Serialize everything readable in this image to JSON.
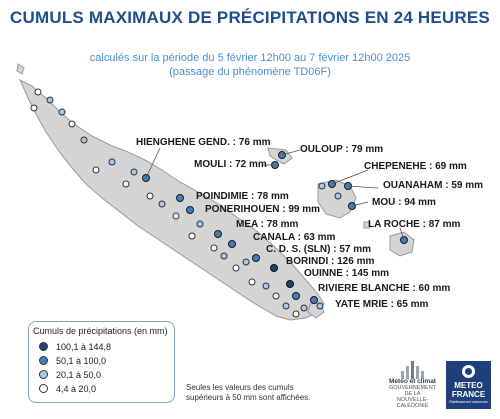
{
  "header": {
    "title": "CUMULS MAXIMAUX DE PRÉCIPITATIONS EN 24 HEURES",
    "subtitle_line1": "calculés sur la période du 5 février 12h00 au 7 février 12h00 2025",
    "subtitle_line2": "(passage du phénomène TD06F)"
  },
  "colors": {
    "class1": "#1f3f7a",
    "class2": "#3f7ec0",
    "class3": "#a8c8ea",
    "class4": "#ffffff",
    "land": "#d4d4d4",
    "coast": "#9a9a9a",
    "title": "#1f4e8c",
    "subtitle": "#4a8fd0"
  },
  "map_labels": [
    {
      "text": "HIENGHENE GEND. : 76 mm"
    },
    {
      "text": "OULOUP : 79 mm"
    },
    {
      "text": "MOULI : 72 mm"
    },
    {
      "text": "CHEPENEHE : 69 mm"
    },
    {
      "text": "OUANAHAM : 59 mm"
    },
    {
      "text": "POINDIMIE : 78 mm"
    },
    {
      "text": "MOU : 94 mm"
    },
    {
      "text": "PONERIHOUEN : 99 mm"
    },
    {
      "text": "LA ROCHE : 87 mm"
    },
    {
      "text": "MEA : 78 mm"
    },
    {
      "text": "CANALA : 63 mm"
    },
    {
      "text": "C. D. S. (SLN) : 57 mm"
    },
    {
      "text": "BORINDI : 126 mm"
    },
    {
      "text": "OUINNE : 145 mm"
    },
    {
      "text": "RIVIERE BLANCHE : 60 mm"
    },
    {
      "text": "YATE MRIE : 65 mm"
    }
  ],
  "legend": {
    "title": "Cumuls de précipitations (en mm)",
    "items": [
      {
        "label": "100,1 à 144,8",
        "color": "#1f3f7a"
      },
      {
        "label": "50,1 à 100,0",
        "color": "#3f7ec0"
      },
      {
        "label": "20,1 à 50,0",
        "color": "#a8c8ea"
      },
      {
        "label": "4,4 à 20,0",
        "color": "#ffffff"
      }
    ]
  },
  "note": {
    "line1": "Seules les valeurs des cumuls",
    "line2": "supérieurs à 50 mm sont affichées."
  },
  "logos": {
    "meteo_nc_line1": "Météo et climat",
    "meteo_nc_line2": "GOUVERNEMENT DE LA",
    "meteo_nc_line3": "NOUVELLE-CALÉDONIE",
    "meteo_france_line1": "METEO",
    "meteo_france_line2": "FRANCE",
    "meteo_france_line3": "Établissement autonome"
  }
}
